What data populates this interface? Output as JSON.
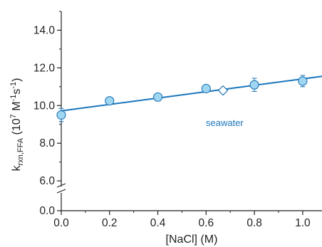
{
  "chart_data": {
    "type": "scatter",
    "xlabel": "[NaCl] (M)",
    "ylabel": {
      "k": "k",
      "sub": "rxn,FFA",
      "open": " (10",
      "exp7": "7",
      "m": " M",
      "expm1a": "-1",
      "s": "s",
      "expm1b": "-1",
      "close": ")"
    },
    "xlim": [
      0.0,
      1.08
    ],
    "ylim_lower": [
      0.0,
      0.45
    ],
    "ylim_upper": [
      5.4,
      15.0
    ],
    "x_ticks": [
      0.0,
      0.2,
      0.4,
      0.6,
      0.8,
      1.0
    ],
    "x_tick_labels": [
      "0.0",
      "0.2",
      "0.4",
      "0.6",
      "0.8",
      "1.0"
    ],
    "y_ticks": [
      0.0,
      6.0,
      8.0,
      10.0,
      12.0,
      14.0
    ],
    "y_tick_labels": [
      "0.0",
      "6.0",
      "8.0",
      "10.0",
      "12.0",
      "14.0"
    ],
    "axis_break": true,
    "grid": false,
    "series": [
      {
        "marker": "circle",
        "points": [
          {
            "x": 0.0,
            "y": 9.5,
            "err": 0.35
          },
          {
            "x": 0.2,
            "y": 10.25,
            "err": 0.15
          },
          {
            "x": 0.4,
            "y": 10.45,
            "err": 0.15
          },
          {
            "x": 0.6,
            "y": 10.9,
            "err": 0.15
          },
          {
            "x": 0.8,
            "y": 11.1,
            "err": 0.35
          },
          {
            "x": 1.0,
            "y": 11.3,
            "err": 0.3
          }
        ]
      },
      {
        "marker": "diamond",
        "points": [
          {
            "x": 0.67,
            "y": 10.8
          }
        ]
      }
    ],
    "fit_line": {
      "x": [
        0.0,
        1.08
      ],
      "y": [
        9.72,
        11.55
      ]
    },
    "annotations": [
      {
        "text": "seawater"
      }
    ],
    "colors": {
      "marker_fill": "#9fd6f2",
      "marker_edge": "#1f74b5",
      "line": "#1a75bb",
      "text": "#1a75bb",
      "axis": "#222222"
    }
  }
}
